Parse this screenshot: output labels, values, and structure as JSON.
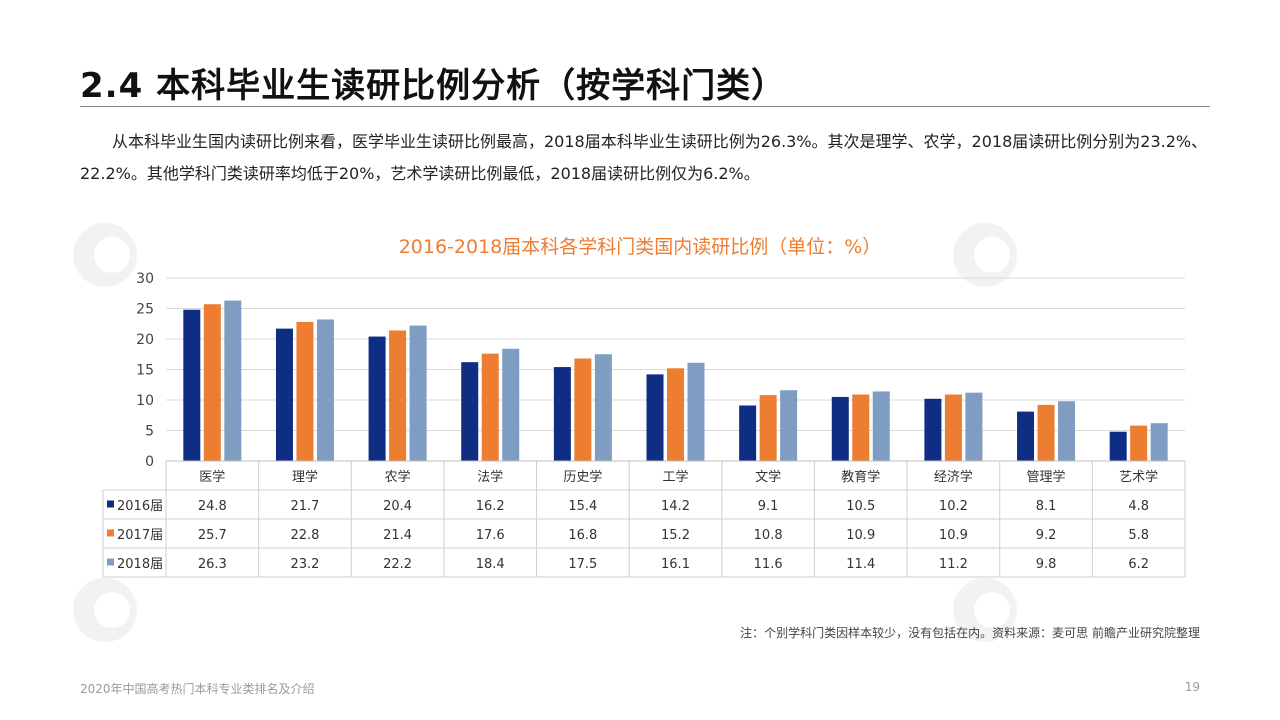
{
  "header": {
    "title": "2.4 本科毕业生读研比例分析（按学科门类）"
  },
  "description": "从本科毕业生国内读研比例来看，医学毕业生读研比例最高，2018届本科毕业生读研比例为26.3%。其次是理学、农学，2018届读研比例分别为23.2%、22.2%。其他学科门类读研率均低于20%，艺术学读研比例最低，2018届读研比例仅为6.2%。",
  "chart_data": {
    "type": "bar",
    "title": "2016-2018届本科各学科门类国内读研比例（单位：%）",
    "categories": [
      "医学",
      "理学",
      "农学",
      "法学",
      "历史学",
      "工学",
      "文学",
      "教育学",
      "经济学",
      "管理学",
      "艺术学"
    ],
    "series": [
      {
        "name": "2016届",
        "color": "#0F2D82",
        "values": [
          24.8,
          21.7,
          20.4,
          16.2,
          15.4,
          14.2,
          9.1,
          10.5,
          10.2,
          8.1,
          4.8
        ]
      },
      {
        "name": "2017届",
        "color": "#ED7D31",
        "values": [
          25.7,
          22.8,
          21.4,
          17.6,
          16.8,
          15.2,
          10.8,
          10.9,
          10.9,
          9.2,
          5.8
        ]
      },
      {
        "name": "2018届",
        "color": "#7F9CC2",
        "values": [
          26.3,
          23.2,
          22.2,
          18.4,
          17.5,
          16.1,
          11.6,
          11.4,
          11.2,
          9.8,
          6.2
        ]
      }
    ],
    "ylim": [
      0,
      30
    ],
    "yticks": [
      0,
      5,
      10,
      15,
      20,
      25,
      30
    ],
    "grid": true,
    "legend": "data-table"
  },
  "note": "注：个别学科门类因样本较少，没有包括在内。资料来源：麦可思 前瞻产业研究院整理",
  "footer": {
    "left": "2020年中国高考热门本科专业类排名及介绍",
    "page_number": "19"
  },
  "watermark": {
    "brand": "前瞻产业研究院"
  }
}
